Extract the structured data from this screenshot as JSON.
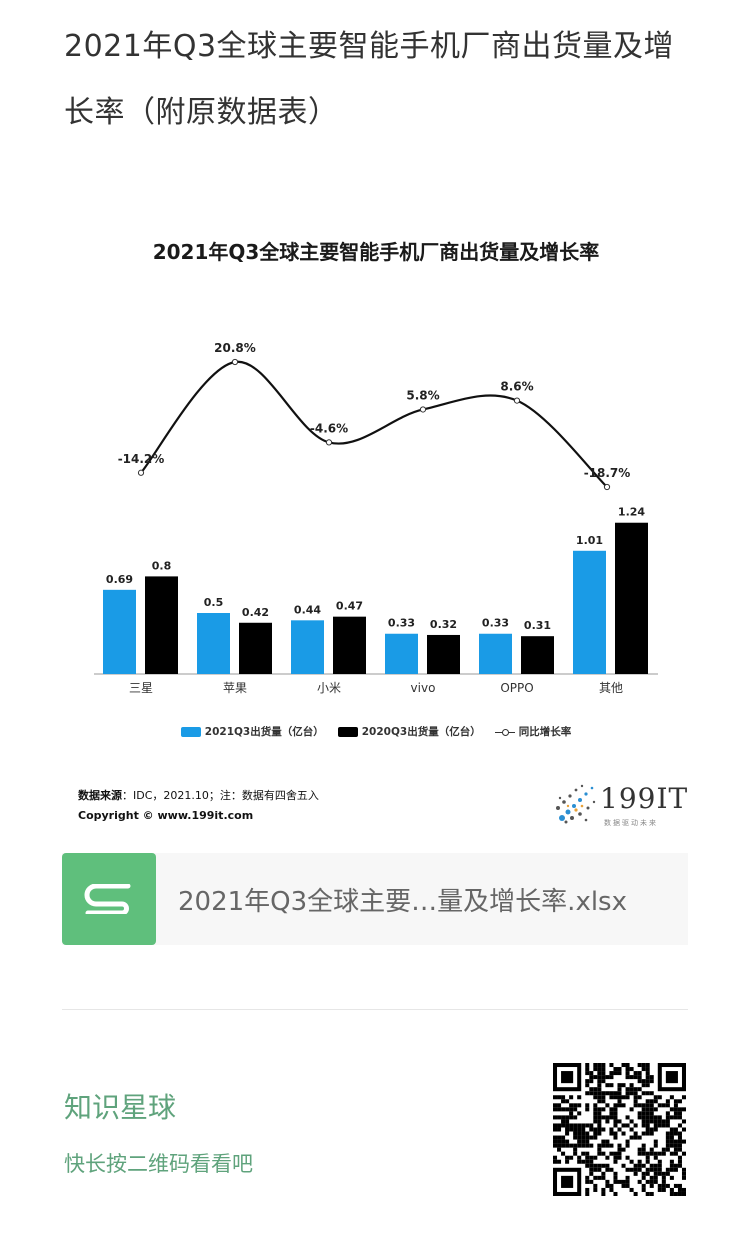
{
  "post": {
    "title": "2021年Q3全球主要智能手机厂商出货量及增长率（附原数据表）"
  },
  "chart_data": {
    "type": "bar",
    "title": "2021年Q3全球主要智能手机厂商出货量及增长率",
    "categories": [
      "三星",
      "苹果",
      "小米",
      "vivo",
      "OPPO",
      "其他"
    ],
    "series": [
      {
        "name": "2021Q3出货量（亿台）",
        "values": [
          0.69,
          0.5,
          0.44,
          0.33,
          0.33,
          1.01
        ],
        "color": "#1a9be6"
      },
      {
        "name": "2020Q3出货量（亿台）",
        "values": [
          0.8,
          0.42,
          0.47,
          0.32,
          0.31,
          1.24
        ],
        "color": "#000000"
      },
      {
        "name": "同比增长率",
        "type": "line",
        "values": [
          -14.2,
          20.8,
          -4.6,
          5.8,
          8.6,
          -18.7
        ],
        "unit": "%"
      }
    ],
    "value_labels": [
      "0.69",
      "0.8",
      "0.5",
      "0.42",
      "0.44",
      "0.47",
      "0.33",
      "0.32",
      "0.33",
      "0.31",
      "1.01",
      "1.24"
    ],
    "rate_labels": [
      "-14.2%",
      "20.8%",
      "-4.6%",
      "5.8%",
      "8.6%",
      "-18.7%"
    ],
    "legend_position": "bottom",
    "grid": false
  },
  "chart_footer": {
    "source_label": "数据来源",
    "source_text": "：IDC，2021.10；注：数据有四舍五入",
    "copyright": "Copyright © www.199it.com",
    "logo_text": "199IT",
    "logo_sub": "数据驱动未来"
  },
  "attachment": {
    "file_name": "2021年Q3全球主要…量及增长率.xlsx",
    "icon": "spreadsheet-icon",
    "icon_color": "#5fbf7c"
  },
  "promo": {
    "name": "知识星球",
    "subtitle": "快长按二维码看看吧",
    "accent": "#5fa37c"
  }
}
